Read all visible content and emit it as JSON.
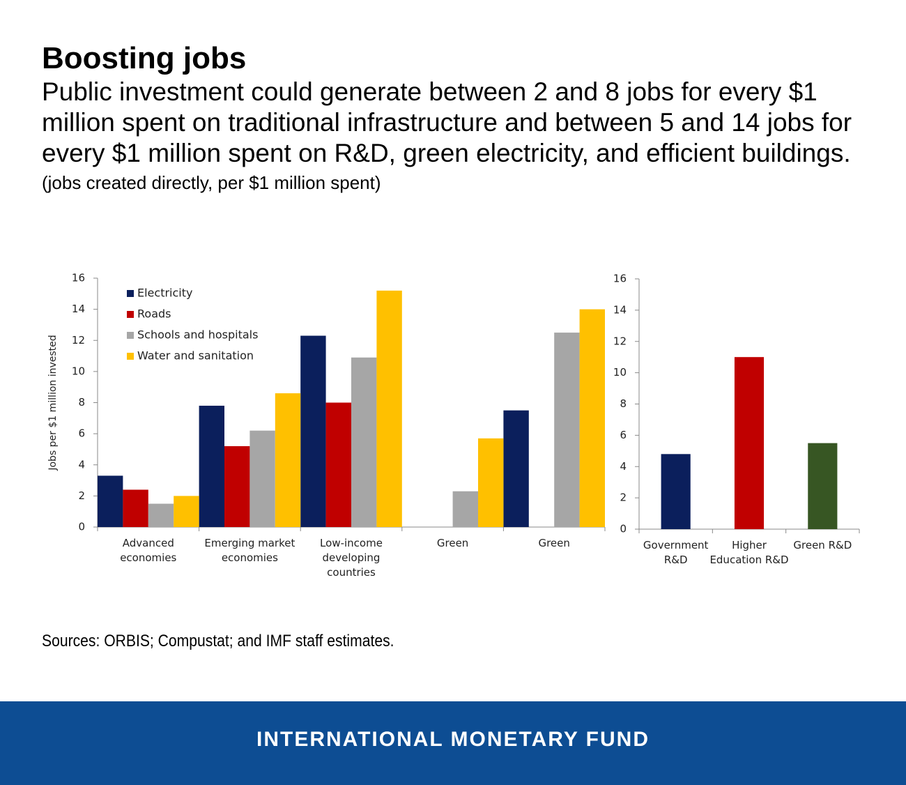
{
  "header": {
    "title": "Boosting jobs",
    "subtitle": "Public investment could generate between 2 and 8 jobs for every $1 million spent on traditional infrastructure and between 5 and 14 jobs for every $1 million spent on R&D, green electricity, and efficient buildings.",
    "note": "(jobs created directly, per $1 million spent)"
  },
  "chart_data": [
    {
      "type": "bar",
      "y_label": "Jobs per $1 million invested",
      "categories": [
        "Advanced economies",
        "Emerging market economies",
        "Low-income developing countries",
        "Green",
        "Green"
      ],
      "series": [
        {
          "name": "Electricity",
          "color": "#0b1f5c",
          "values": [
            3.3,
            7.8,
            12.3,
            null,
            7.5
          ]
        },
        {
          "name": "Roads",
          "color": "#c00000",
          "values": [
            2.4,
            5.2,
            8.0,
            null,
            null
          ]
        },
        {
          "name": "Schools and hospitals",
          "color": "#a6a6a6",
          "values": [
            1.5,
            6.2,
            10.9,
            2.3,
            12.5
          ]
        },
        {
          "name": "Water and sanitation",
          "color": "#ffc000",
          "values": [
            2.0,
            8.6,
            15.2,
            5.7,
            14.0
          ]
        }
      ],
      "ylim": [
        0,
        16
      ],
      "yticks": [
        0,
        2,
        4,
        6,
        8,
        10,
        12,
        14,
        16
      ],
      "legend": "top-left"
    },
    {
      "type": "bar",
      "categories": [
        "Government R&D",
        "Higher Education R&D",
        "Green R&D"
      ],
      "values": [
        4.8,
        11.0,
        5.5
      ],
      "colors": [
        "#0b1f5c",
        "#c00000",
        "#375623"
      ],
      "ylim": [
        0,
        16
      ],
      "yticks": [
        0,
        2,
        4,
        6,
        8,
        10,
        12,
        14,
        16
      ]
    }
  ],
  "source": "Sources: ORBIS; Compustat; and IMF staff estimates.",
  "footer": "INTERNATIONAL MONETARY FUND"
}
